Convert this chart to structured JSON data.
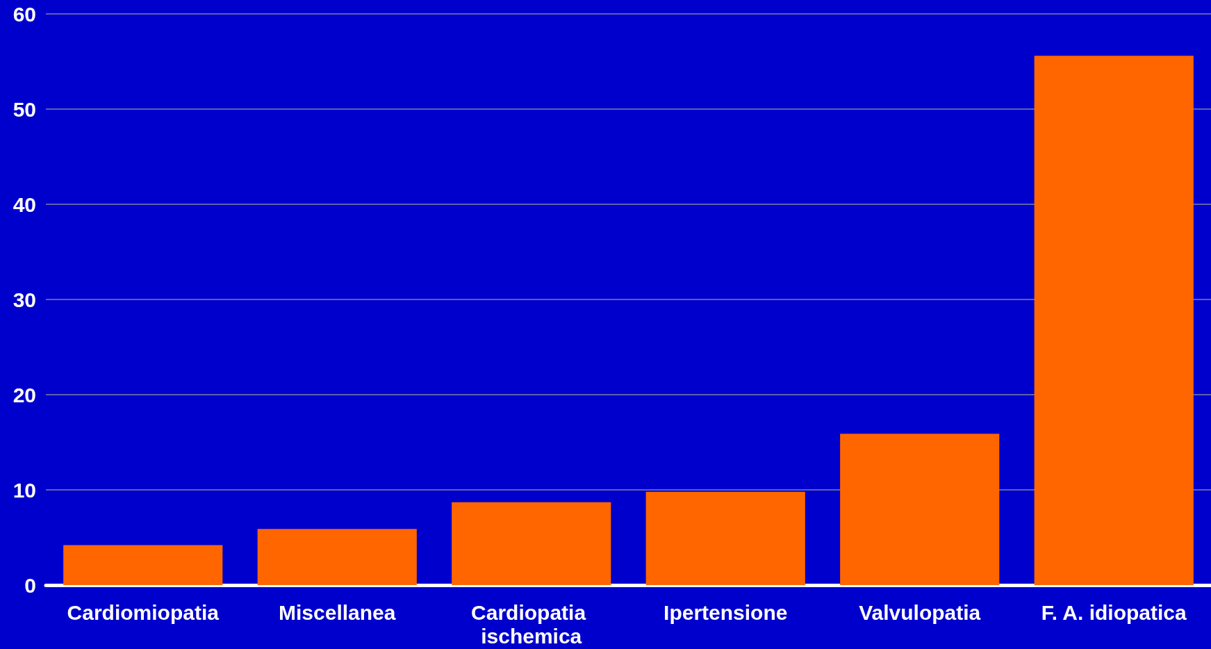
{
  "chart_data": {
    "type": "bar",
    "categories": [
      "Cardiomiopatia",
      "Miscellanea",
      "Cardiopatia ischemica",
      "Ipertensione",
      "Valvulopatia",
      "F. A. idiopatica"
    ],
    "values": [
      4.2,
      5.9,
      8.7,
      9.8,
      15.9,
      55.6
    ],
    "color": "#ff6600",
    "ylim": [
      0,
      60
    ],
    "yticks": [
      0,
      10,
      20,
      30,
      40,
      50,
      60
    ],
    "grid": "y"
  }
}
